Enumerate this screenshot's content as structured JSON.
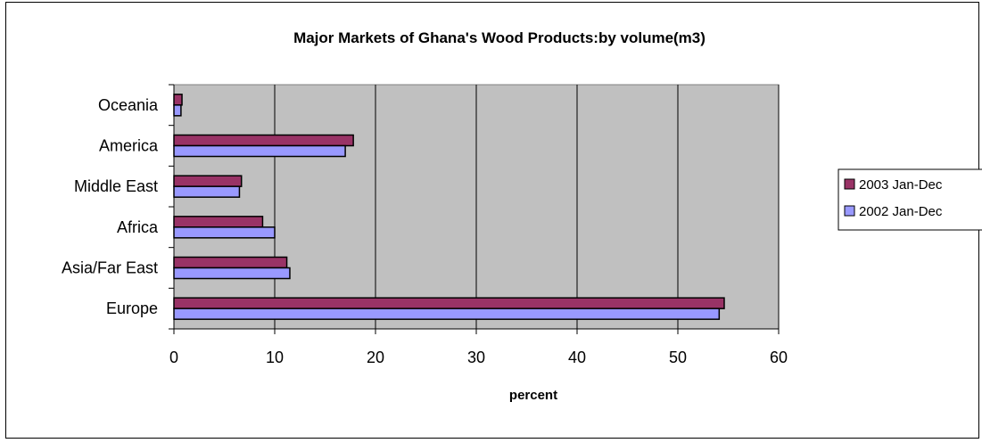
{
  "chart_data": {
    "type": "bar",
    "orientation": "horizontal",
    "title": "Major Markets of Ghana's Wood Products:by volume(m3)",
    "xlabel": "percent",
    "ylabel": "",
    "categories": [
      "Oceania",
      "America",
      "Middle East",
      "Africa",
      "Asia/Far East",
      "Europe"
    ],
    "series": [
      {
        "name": "2003 Jan-Dec",
        "color": "#993366",
        "values": [
          0.8,
          17.8,
          6.7,
          8.8,
          11.2,
          54.6
        ]
      },
      {
        "name": "2002 Jan-Dec",
        "color": "#9999ff",
        "values": [
          0.7,
          17.0,
          6.5,
          10.0,
          11.5,
          54.1
        ]
      }
    ],
    "xlim": [
      0,
      60
    ],
    "xticks": [
      "0",
      "10",
      "20",
      "30",
      "40",
      "50",
      "60"
    ],
    "grid": true,
    "legend_position": "right",
    "plot_background": "#c0c0c0"
  }
}
